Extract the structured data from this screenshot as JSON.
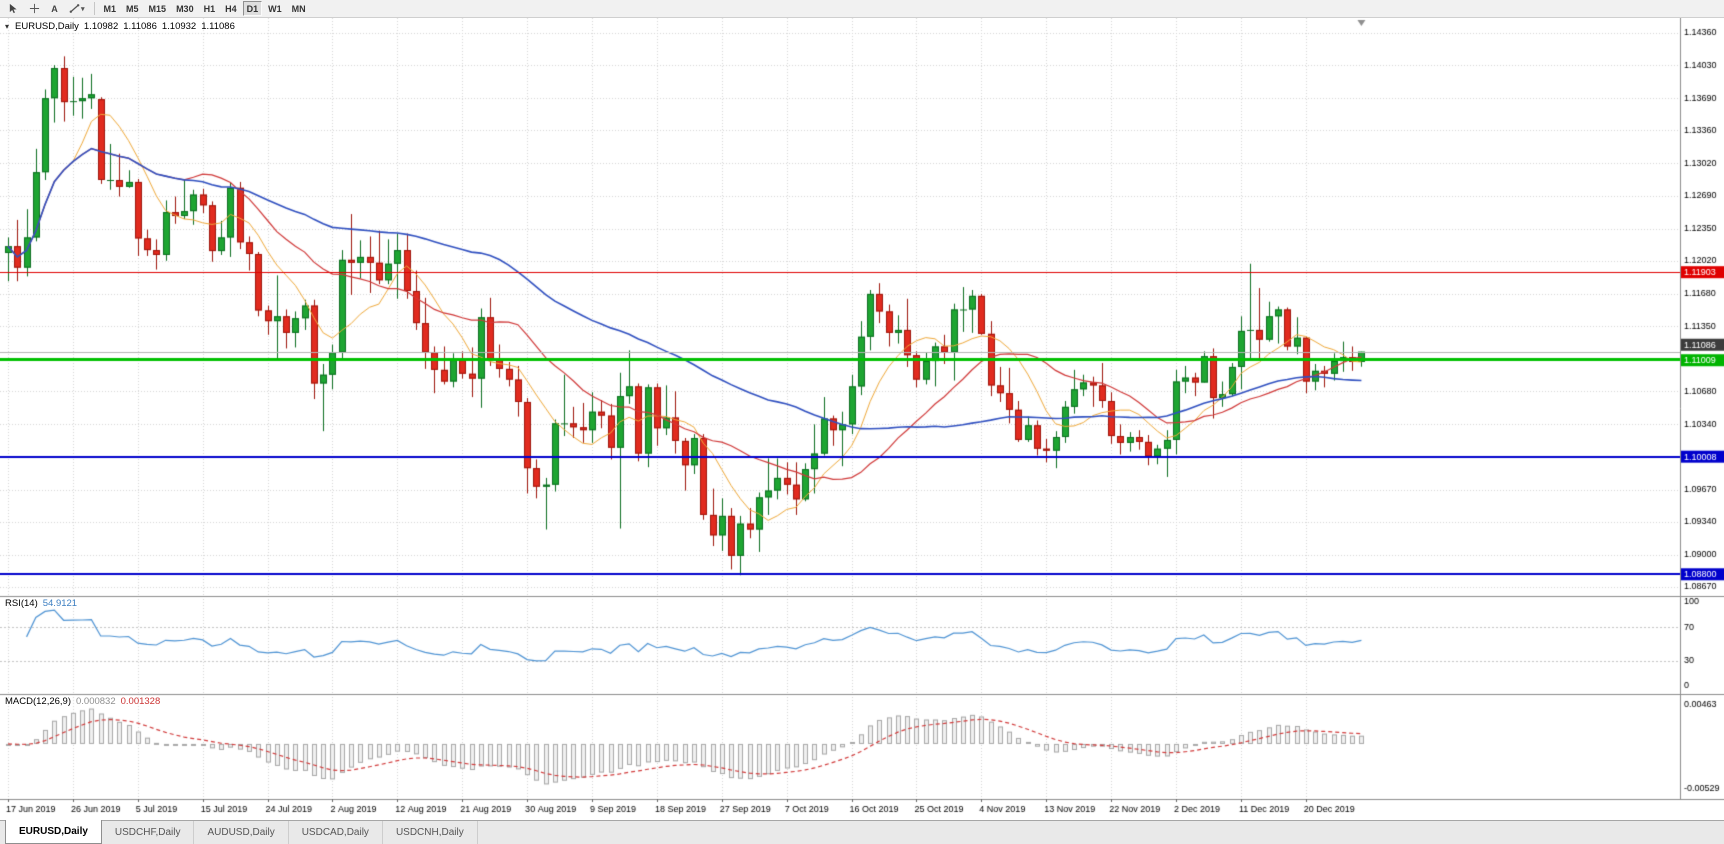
{
  "toolbar": {
    "text_tool_label": "A",
    "timeframes": [
      "M1",
      "M5",
      "M15",
      "M30",
      "H1",
      "H4",
      "D1",
      "W1",
      "MN"
    ],
    "active_timeframe": "D1"
  },
  "icons": {
    "d_caret": "▾",
    "symbol_caret": "▾"
  },
  "chart_header": {
    "symbol_period": "EURUSD,Daily",
    "open": "1.10982",
    "high": "1.11086",
    "low": "1.10932",
    "close": "1.11086"
  },
  "colors": {
    "bull": "#1ea532",
    "bull_border": "#0b6e20",
    "bear": "#e12b1f",
    "bear_border": "#9e150b",
    "grid": "#d6d6d6",
    "separator": "#8c8c8c",
    "rsi_line": "#4f94d4",
    "rsi_level": "#c4c4c4",
    "macd_hist_fill": "#f0f0f0",
    "macd_hist_stroke": "#a8a8a8",
    "macd_signal": "#d23c3c",
    "shift_marker": "#909090"
  },
  "chart_data": {
    "type": "candlestick",
    "symbol": "EURUSD",
    "timeframe": "Daily",
    "price_range": {
      "top": 1.14514,
      "bottom": 1.08577
    },
    "price_axis_labels": [
      "1.14360",
      "1.14030",
      "1.13690",
      "1.13360",
      "1.13020",
      "1.12690",
      "1.12350",
      "1.12020",
      "1.11680",
      "1.11350",
      "1.11020",
      "1.10680",
      "1.10340",
      "1.10000",
      "1.09670",
      "1.09340",
      "1.09000",
      "1.08670"
    ],
    "date_labels": [
      "17 Jun 2019",
      "26 Jun 2019",
      "5 Jul 2019",
      "15 Jul 2019",
      "24 Jul 2019",
      "2 Aug 2019",
      "12 Aug 2019",
      "21 Aug 2019",
      "30 Aug 2019",
      "9 Sep 2019",
      "18 Sep 2019",
      "27 Sep 2019",
      "7 Oct 2019",
      "16 Oct 2019",
      "25 Oct 2019",
      "4 Nov 2019",
      "13 Nov 2019",
      "22 Nov 2019",
      "2 Dec 2019",
      "11 Dec 2019",
      "20 Dec 2019"
    ],
    "label_every": 7,
    "hlines": [
      {
        "name": "resistance-line",
        "price": 1.11903,
        "color": "#e00000",
        "width": 1,
        "label": "1.11903",
        "badge_bg": "#e00000",
        "badge_dy": 0
      },
      {
        "name": "bid-price-line",
        "price": 1.11086,
        "color": "#b4b4b4",
        "width": 1,
        "label": "1.11086",
        "badge_bg": "#3c3c3c",
        "badge_dy": -7
      },
      {
        "name": "support-line-green",
        "price": 1.11009,
        "color": "#00c000",
        "width": 3,
        "label": "1.11009",
        "badge_bg": "#00b400",
        "badge_dy": 1
      },
      {
        "name": "support-line-blue-1",
        "price": 1.10008,
        "color": "#0000cc",
        "width": 2,
        "label": "1.10008",
        "badge_bg": "#0000cc",
        "badge_dy": 0
      },
      {
        "name": "support-line-blue-2",
        "price": 1.088,
        "color": "#0000cc",
        "width": 2,
        "label": "1.08800",
        "badge_bg": "#0000cc",
        "badge_dy": 0
      }
    ],
    "moving_averages": [
      {
        "name": "ma-fast",
        "period": 8,
        "color": "#efa93a",
        "width": 1
      },
      {
        "name": "ma-mid",
        "period": 20,
        "color": "#d03838",
        "width": 1.2
      },
      {
        "name": "ma-slow",
        "period": 50,
        "color": "#3050c0",
        "width": 1.6
      }
    ],
    "rsi": {
      "label": "RSI(14)",
      "value": "54.9121",
      "period": 14,
      "levels": [
        70,
        30
      ],
      "axis_labels": [
        "100",
        "70",
        "30",
        "0"
      ]
    },
    "macd": {
      "label": "MACD(12,26,9)",
      "value_main": "0.000832",
      "value_signal": "0.001328",
      "fast": 12,
      "slow": 26,
      "signal": 9,
      "range": {
        "top": 0.0054,
        "bottom": -0.006
      },
      "axis_labels": [
        "0.00463",
        "-0.00529"
      ]
    },
    "candles": [
      [
        1.121,
        1.1226,
        1.1181,
        1.1217
      ],
      [
        1.1217,
        1.1244,
        1.1181,
        1.1195
      ],
      [
        1.1195,
        1.1255,
        1.1186,
        1.1226
      ],
      [
        1.1226,
        1.1317,
        1.1222,
        1.1293
      ],
      [
        1.1293,
        1.1378,
        1.1285,
        1.1369
      ],
      [
        1.1369,
        1.1403,
        1.1344,
        1.14
      ],
      [
        1.14,
        1.1412,
        1.1345,
        1.1365
      ],
      [
        1.1365,
        1.1391,
        1.1351,
        1.1366
      ],
      [
        1.1366,
        1.139,
        1.1348,
        1.1369
      ],
      [
        1.1369,
        1.1394,
        1.1358,
        1.1373
      ],
      [
        1.1368,
        1.137,
        1.1281,
        1.1285
      ],
      [
        1.1285,
        1.1322,
        1.1275,
        1.1285
      ],
      [
        1.1285,
        1.1312,
        1.1268,
        1.1278
      ],
      [
        1.1278,
        1.1295,
        1.1277,
        1.1283
      ],
      [
        1.1283,
        1.1286,
        1.1207,
        1.1225
      ],
      [
        1.1225,
        1.1234,
        1.1207,
        1.1213
      ],
      [
        1.1213,
        1.1224,
        1.1193,
        1.1208
      ],
      [
        1.1208,
        1.1264,
        1.1202,
        1.1252
      ],
      [
        1.1252,
        1.1268,
        1.124,
        1.1248
      ],
      [
        1.1248,
        1.1285,
        1.1245,
        1.1253
      ],
      [
        1.1253,
        1.1275,
        1.1239,
        1.127
      ],
      [
        1.127,
        1.1276,
        1.1251,
        1.1259
      ],
      [
        1.1259,
        1.1263,
        1.1201,
        1.1212
      ],
      [
        1.1212,
        1.1243,
        1.1208,
        1.1226
      ],
      [
        1.1226,
        1.1282,
        1.1206,
        1.1277
      ],
      [
        1.1277,
        1.1283,
        1.1214,
        1.1221
      ],
      [
        1.1221,
        1.1227,
        1.1192,
        1.1209
      ],
      [
        1.1209,
        1.1211,
        1.1145,
        1.1151
      ],
      [
        1.1151,
        1.1156,
        1.1126,
        1.114
      ],
      [
        1.114,
        1.1187,
        1.1101,
        1.1145
      ],
      [
        1.1145,
        1.1152,
        1.1112,
        1.1128
      ],
      [
        1.1128,
        1.115,
        1.1113,
        1.1143
      ],
      [
        1.1143,
        1.1162,
        1.1131,
        1.1156
      ],
      [
        1.1156,
        1.1162,
        1.106,
        1.1076
      ],
      [
        1.1076,
        1.1096,
        1.1027,
        1.1085
      ],
      [
        1.1085,
        1.1116,
        1.107,
        1.1108
      ],
      [
        1.1108,
        1.1213,
        1.1101,
        1.1203
      ],
      [
        1.1203,
        1.125,
        1.1167,
        1.12
      ],
      [
        1.12,
        1.1223,
        1.1184,
        1.1206
      ],
      [
        1.1206,
        1.1227,
        1.1169,
        1.12
      ],
      [
        1.12,
        1.1233,
        1.1178,
        1.1182
      ],
      [
        1.1182,
        1.1224,
        1.1178,
        1.1199
      ],
      [
        1.1199,
        1.123,
        1.1163,
        1.1213
      ],
      [
        1.1213,
        1.123,
        1.1163,
        1.1171
      ],
      [
        1.1171,
        1.1192,
        1.1131,
        1.1138
      ],
      [
        1.1138,
        1.1164,
        1.1091,
        1.1108
      ],
      [
        1.1108,
        1.1114,
        1.1066,
        1.109
      ],
      [
        1.109,
        1.1114,
        1.1075,
        1.1078
      ],
      [
        1.1078,
        1.1107,
        1.1072,
        1.11
      ],
      [
        1.11,
        1.1109,
        1.1081,
        1.1086
      ],
      [
        1.1086,
        1.1113,
        1.1062,
        1.1081
      ],
      [
        1.1081,
        1.1153,
        1.1051,
        1.1144
      ],
      [
        1.1144,
        1.1164,
        1.1094,
        1.1101
      ],
      [
        1.1101,
        1.1116,
        1.1082,
        1.1091
      ],
      [
        1.1091,
        1.1098,
        1.1073,
        1.108
      ],
      [
        1.108,
        1.1094,
        1.1042,
        1.1057
      ],
      [
        1.1057,
        1.1061,
        1.0963,
        1.0989
      ],
      [
        1.0989,
        1.0998,
        1.0958,
        1.097
      ],
      [
        1.097,
        1.0979,
        1.0926,
        1.0972
      ],
      [
        1.0972,
        1.1039,
        1.0965,
        1.1035
      ],
      [
        1.1035,
        1.1085,
        1.1022,
        1.1035
      ],
      [
        1.1035,
        1.1052,
        1.102,
        1.1031
      ],
      [
        1.1031,
        1.1056,
        1.1015,
        1.1028
      ],
      [
        1.1028,
        1.1067,
        1.1015,
        1.1047
      ],
      [
        1.1047,
        1.1059,
        1.103,
        1.1043
      ],
      [
        1.1043,
        1.1055,
        1.0998,
        1.101
      ],
      [
        1.101,
        1.1087,
        1.0927,
        1.1063
      ],
      [
        1.1063,
        1.111,
        1.1055,
        1.1073
      ],
      [
        1.1073,
        1.1076,
        1.0996,
        1.1004
      ],
      [
        1.1004,
        1.1075,
        1.099,
        1.1072
      ],
      [
        1.1072,
        1.1076,
        1.1012,
        1.103
      ],
      [
        1.103,
        1.1074,
        1.1023,
        1.1041
      ],
      [
        1.1041,
        1.1068,
        1.1004,
        1.1017
      ],
      [
        1.1017,
        1.102,
        1.0966,
        1.0992
      ],
      [
        1.0992,
        1.1024,
        1.0983,
        1.102
      ],
      [
        1.102,
        1.1024,
        1.0936,
        1.0941
      ],
      [
        1.0941,
        1.0968,
        1.0909,
        1.092
      ],
      [
        1.092,
        1.0958,
        1.0904,
        1.094
      ],
      [
        1.094,
        1.0948,
        1.0885,
        1.0899
      ],
      [
        1.0899,
        1.094,
        1.0879,
        1.0932
      ],
      [
        1.0932,
        1.0948,
        1.0917,
        1.0926
      ],
      [
        1.0926,
        1.0964,
        1.0903,
        1.0959
      ],
      [
        1.0959,
        1.0999,
        1.0941,
        1.0966
      ],
      [
        1.0966,
        1.0999,
        1.0957,
        1.0979
      ],
      [
        1.0979,
        1.0995,
        1.0962,
        1.0972
      ],
      [
        1.0972,
        1.0995,
        1.0941,
        1.0957
      ],
      [
        1.0957,
        1.0994,
        1.0955,
        1.0988
      ],
      [
        1.0988,
        1.1034,
        1.0963,
        1.1004
      ],
      [
        1.1004,
        1.1062,
        1.1002,
        1.104
      ],
      [
        1.104,
        1.1043,
        1.1012,
        1.1028
      ],
      [
        1.1028,
        1.1047,
        1.0991,
        1.1034
      ],
      [
        1.1034,
        1.1085,
        1.1024,
        1.1073
      ],
      [
        1.1073,
        1.114,
        1.1064,
        1.1124
      ],
      [
        1.1124,
        1.1172,
        1.111,
        1.1168
      ],
      [
        1.1168,
        1.1179,
        1.1138,
        1.115
      ],
      [
        1.115,
        1.1157,
        1.1114,
        1.1128
      ],
      [
        1.1128,
        1.1146,
        1.1117,
        1.1131
      ],
      [
        1.1131,
        1.1163,
        1.1093,
        1.1105
      ],
      [
        1.1105,
        1.1109,
        1.1072,
        1.108
      ],
      [
        1.108,
        1.1108,
        1.1075,
        1.1099
      ],
      [
        1.1099,
        1.1118,
        1.1073,
        1.1114
      ],
      [
        1.1114,
        1.1126,
        1.1096,
        1.1108
      ],
      [
        1.1108,
        1.1158,
        1.1079,
        1.1152
      ],
      [
        1.1152,
        1.1175,
        1.1129,
        1.1152
      ],
      [
        1.1152,
        1.1172,
        1.1128,
        1.1166
      ],
      [
        1.1166,
        1.1168,
        1.1126,
        1.1127
      ],
      [
        1.1127,
        1.114,
        1.1063,
        1.1074
      ],
      [
        1.1074,
        1.1093,
        1.1057,
        1.1066
      ],
      [
        1.1066,
        1.1092,
        1.1035,
        1.1049
      ],
      [
        1.1049,
        1.1058,
        1.1016,
        1.1018
      ],
      [
        1.1018,
        1.1042,
        1.1016,
        1.1033
      ],
      [
        1.1033,
        1.1038,
        1.1002,
        1.1009
      ],
      [
        1.1009,
        1.1019,
        1.0995,
        1.1007
      ],
      [
        1.1007,
        1.1027,
        1.0989,
        1.1021
      ],
      [
        1.1021,
        1.1058,
        1.1015,
        1.1052
      ],
      [
        1.1052,
        1.109,
        1.1045,
        1.107
      ],
      [
        1.107,
        1.1085,
        1.1063,
        1.1077
      ],
      [
        1.1077,
        1.1083,
        1.1052,
        1.1074
      ],
      [
        1.1074,
        1.1097,
        1.1051,
        1.1058
      ],
      [
        1.1058,
        1.1067,
        1.1014,
        1.1022
      ],
      [
        1.1022,
        1.1034,
        1.1003,
        1.1015
      ],
      [
        1.1015,
        1.1026,
        1.1006,
        1.1021
      ],
      [
        1.1021,
        1.1028,
        1.1008,
        1.1016
      ],
      [
        1.1016,
        1.1023,
        1.0992,
        1.1001
      ],
      [
        1.1001,
        1.1013,
        1.0993,
        1.1009
      ],
      [
        1.1009,
        1.1028,
        1.098,
        1.1018
      ],
      [
        1.1018,
        1.109,
        1.1003,
        1.1078
      ],
      [
        1.1078,
        1.1094,
        1.1066,
        1.1082
      ],
      [
        1.1082,
        1.1087,
        1.1063,
        1.1077
      ],
      [
        1.1077,
        1.1109,
        1.1077,
        1.1104
      ],
      [
        1.1104,
        1.1112,
        1.104,
        1.1061
      ],
      [
        1.1061,
        1.1078,
        1.1052,
        1.1065
      ],
      [
        1.1065,
        1.1097,
        1.1063,
        1.1093
      ],
      [
        1.1093,
        1.1145,
        1.107,
        1.113
      ],
      [
        1.113,
        1.1199,
        1.1102,
        1.1131
      ],
      [
        1.1131,
        1.1174,
        1.11,
        1.1121
      ],
      [
        1.1121,
        1.116,
        1.1119,
        1.1145
      ],
      [
        1.1145,
        1.1155,
        1.1117,
        1.1152
      ],
      [
        1.1152,
        1.1154,
        1.111,
        1.1114
      ],
      [
        1.1114,
        1.1144,
        1.1106,
        1.1123
      ],
      [
        1.1123,
        1.1124,
        1.1066,
        1.1078
      ],
      [
        1.1078,
        1.1096,
        1.1069,
        1.1089
      ],
      [
        1.1089,
        1.1094,
        1.1072,
        1.1086
      ],
      [
        1.1086,
        1.1107,
        1.1079,
        1.1099
      ],
      [
        1.1099,
        1.1119,
        1.1088,
        1.1103
      ],
      [
        1.1103,
        1.1114,
        1.1089,
        1.10982
      ],
      [
        1.10982,
        1.11086,
        1.10932,
        1.11086
      ]
    ]
  },
  "tabs": [
    {
      "label": "EURUSD,Daily",
      "active": true
    },
    {
      "label": "USDCHF,Daily",
      "active": false
    },
    {
      "label": "AUDUSD,Daily",
      "active": false
    },
    {
      "label": "USDCAD,Daily",
      "active": false
    },
    {
      "label": "USDCNH,Daily",
      "active": false
    }
  ]
}
